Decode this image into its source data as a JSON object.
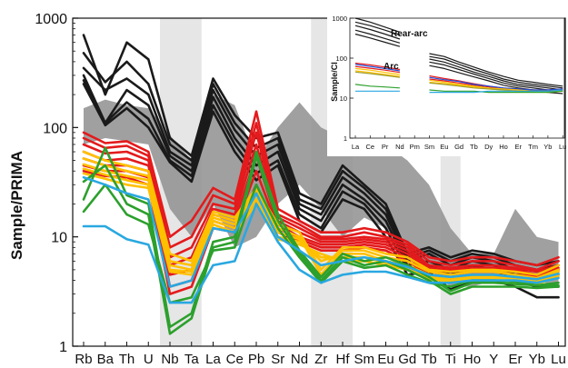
{
  "chart_data": [
    {
      "type": "line",
      "ylabel": "Sample/PRIMA",
      "yscale": "log",
      "ylim": [
        1,
        1000
      ],
      "y_ticks": [
        "1",
        "10",
        "100",
        "1000"
      ],
      "categories": [
        "Rb",
        "Ba",
        "Th",
        "U",
        "Nb",
        "Ta",
        "La",
        "Ce",
        "Pb",
        "Sr",
        "Nd",
        "Zr",
        "Hf",
        "Sm",
        "Eu",
        "Gd",
        "Tb",
        "Ti",
        "Ho",
        "Y",
        "Er",
        "Yb",
        "Lu"
      ],
      "category_positions": [
        0,
        1,
        2,
        3,
        4,
        5,
        6,
        7,
        8,
        9,
        10,
        11,
        12,
        13,
        14,
        15,
        16,
        17,
        18,
        19,
        20,
        21,
        22
      ],
      "shaded_columns": [
        "Nb",
        "Ta",
        "Zr",
        "Hf",
        "Ti"
      ],
      "grey_field": {
        "upper": [
          150,
          180,
          160,
          150,
          85,
          50,
          200,
          160,
          50,
          100,
          170,
          100,
          80,
          90,
          70,
          50,
          30,
          12,
          7,
          7,
          18,
          10,
          9
        ],
        "lower": [
          70,
          80,
          75,
          70,
          18,
          10,
          20,
          8,
          10,
          20,
          30,
          18,
          10,
          15,
          12,
          7,
          5,
          3.5,
          3.5,
          4,
          4.5,
          4,
          3.5
        ]
      },
      "series": [
        {
          "color": "#1a1a1a",
          "values": [
            700,
            200,
            600,
            420,
            80,
            55,
            280,
            130,
            80,
            90,
            25,
            20,
            45,
            30,
            20,
            7,
            8,
            6.5,
            7.5,
            7,
            6,
            5.5,
            6
          ]
        },
        {
          "color": "#1a1a1a",
          "values": [
            480,
            260,
            400,
            250,
            70,
            50,
            250,
            110,
            65,
            80,
            22,
            18,
            40,
            28,
            18,
            6.5,
            7.5,
            6,
            7,
            6.5,
            5.5,
            5,
            5.5
          ]
        },
        {
          "color": "#1a1a1a",
          "values": [
            350,
            220,
            280,
            200,
            60,
            45,
            220,
            95,
            55,
            70,
            20,
            16,
            35,
            25,
            16,
            6,
            7,
            5.5,
            6.5,
            6,
            5,
            5,
            5
          ]
        },
        {
          "color": "#1a1a1a",
          "values": [
            300,
            110,
            220,
            160,
            55,
            40,
            190,
            80,
            45,
            60,
            18,
            14,
            30,
            22,
            14,
            5.5,
            6,
            5,
            6,
            5.5,
            4.5,
            4.5,
            4.5
          ]
        },
        {
          "color": "#1a1a1a",
          "values": [
            270,
            110,
            170,
            120,
            50,
            36,
            160,
            70,
            38,
            50,
            16,
            12,
            26,
            20,
            12,
            5,
            5.5,
            4.5,
            5.5,
            5,
            4,
            3.5,
            3.5
          ]
        },
        {
          "color": "#1a1a1a",
          "values": [
            250,
            105,
            150,
            100,
            48,
            32,
            140,
            60,
            33,
            45,
            14,
            11,
            22,
            18,
            10,
            4.5,
            4.8,
            3.3,
            4,
            4,
            3.5,
            2.8,
            2.8
          ]
        },
        {
          "color": "#e41a1c",
          "values": [
            90,
            72,
            75,
            60,
            10,
            14,
            28,
            22,
            140,
            18,
            14,
            11,
            11,
            12,
            11,
            9,
            6.5,
            6,
            6.5,
            6.5,
            6,
            5.5,
            6.5
          ]
        },
        {
          "color": "#e41a1c",
          "values": [
            80,
            65,
            68,
            55,
            8,
            10,
            24,
            20,
            110,
            16,
            13,
            10,
            10,
            11,
            10,
            8.5,
            6,
            5.5,
            6,
            6,
            5.5,
            5,
            6
          ]
        },
        {
          "color": "#e41a1c",
          "values": [
            70,
            58,
            60,
            50,
            6.5,
            8,
            20,
            18,
            90,
            15,
            12,
            9.5,
            9.5,
            10,
            9.5,
            8,
            5.5,
            5.2,
            5.5,
            5.5,
            5.2,
            4.8,
            5.5
          ]
        },
        {
          "color": "#e41a1c",
          "values": [
            60,
            50,
            52,
            45,
            5.5,
            6.5,
            18,
            16,
            70,
            14,
            11,
            9,
            9,
            9.5,
            9,
            7.5,
            5.2,
            5,
            5.2,
            5.2,
            5,
            4.5,
            5.2
          ]
        },
        {
          "color": "#e41a1c",
          "values": [
            52,
            45,
            45,
            40,
            4.5,
            5,
            16,
            14,
            55,
            13,
            10,
            8.5,
            8.5,
            9,
            8.5,
            7,
            5,
            4.8,
            5,
            5,
            4.8,
            4.3,
            5
          ]
        },
        {
          "color": "#e41a1c",
          "values": [
            45,
            40,
            40,
            35,
            3.5,
            4,
            14,
            12,
            40,
            12,
            9.5,
            8,
            8,
            8.5,
            8,
            6.5,
            4.8,
            4.5,
            4.8,
            4.8,
            4.5,
            4,
            4.8
          ]
        },
        {
          "color": "#e41a1c",
          "values": [
            40,
            36,
            35,
            30,
            3,
            3.5,
            12,
            11,
            30,
            11,
            9,
            7.5,
            7.5,
            8,
            7.5,
            6,
            4.5,
            4.2,
            4.5,
            4.5,
            4.2,
            3.8,
            4.5
          ]
        },
        {
          "color": "#ffc000",
          "values": [
            60,
            50,
            45,
            40,
            7,
            6,
            17,
            15,
            28,
            13,
            11,
            5,
            8,
            8,
            7,
            6.5,
            5,
            4.8,
            5,
            5,
            4.8,
            4.5,
            5.5
          ]
        },
        {
          "color": "#ffc000",
          "values": [
            52,
            45,
            40,
            36,
            6,
            5.5,
            16,
            14,
            26,
            12,
            10,
            4.5,
            7.5,
            7.5,
            6.5,
            6,
            4.8,
            4.5,
            4.8,
            4.8,
            4.5,
            4.2,
            5
          ]
        },
        {
          "color": "#ffc000",
          "values": [
            46,
            40,
            36,
            33,
            5.5,
            5,
            15,
            13,
            24,
            11,
            9.5,
            6,
            7,
            7,
            6,
            5.5,
            4.5,
            4.2,
            4.5,
            4.5,
            4.3,
            4,
            4.8
          ]
        },
        {
          "color": "#ffc000",
          "values": [
            42,
            37,
            33,
            30,
            5,
            4.8,
            14,
            12,
            22,
            10,
            9,
            6.5,
            6.5,
            6.5,
            5.8,
            5.2,
            4.3,
            4,
            4.3,
            4.3,
            4.1,
            3.9,
            4.5
          ]
        },
        {
          "color": "#ffc000",
          "values": [
            38,
            34,
            30,
            28,
            4.8,
            4.5,
            13,
            11,
            20,
            9.5,
            8.5,
            7,
            6,
            6,
            5.5,
            5,
            4.1,
            3.9,
            4.1,
            4.1,
            3.9,
            3.7,
            4.3
          ]
        },
        {
          "color": "#2ca02c",
          "values": [
            32,
            45,
            20,
            16,
            1.3,
            1.8,
            8,
            9,
            55,
            14,
            7,
            4,
            6.5,
            5.5,
            6,
            5,
            4,
            3,
            3.5,
            3.5,
            3.5,
            3.4,
            3.5
          ]
        },
        {
          "color": "#2ca02c",
          "values": [
            22,
            65,
            24,
            20,
            1.5,
            2,
            9,
            10,
            60,
            16,
            7.5,
            4.3,
            7,
            6,
            6.5,
            5.5,
            4.3,
            3.2,
            3.8,
            3.8,
            3.7,
            3.6,
            3.8
          ]
        },
        {
          "color": "#2ca02c",
          "values": [
            17,
            30,
            16,
            13,
            2.5,
            2.8,
            7.5,
            8,
            30,
            12,
            6.5,
            3.8,
            6,
            5.2,
            5.5,
            4.5,
            3.8,
            3.5,
            4,
            4,
            3.9,
            3.6,
            3.6
          ]
        },
        {
          "color": "#29a8e0",
          "values": [
            12.5,
            12.5,
            9.5,
            8.5,
            2.5,
            2.5,
            5.5,
            6,
            20,
            9,
            5,
            3.8,
            4.5,
            4.8,
            4.8,
            4.3,
            3.8,
            3.8,
            4,
            4,
            4,
            3.8,
            4.2
          ]
        },
        {
          "color": "#29a8e0",
          "values": [
            35,
            30,
            25,
            22,
            3.5,
            4,
            12,
            11,
            25,
            10,
            7.5,
            5.5,
            6,
            6.5,
            6,
            5.3,
            4.5,
            4.3,
            4.5,
            4.5,
            4.3,
            4.1,
            4.6
          ]
        }
      ]
    },
    {
      "type": "line",
      "ylabel": "Sample/CI",
      "yscale": "log",
      "ylim": [
        1,
        1000
      ],
      "y_ticks": [
        "1",
        "10",
        "100",
        "1000"
      ],
      "categories": [
        "La",
        "Ce",
        "Pr",
        "Nd",
        "Pm",
        "Sm",
        "Eu",
        "Gd",
        "Tb",
        "Dy",
        "Ho",
        "Er",
        "Tm",
        "Yb",
        "Lu"
      ],
      "annotations": [
        "Rear-arc",
        "Arc"
      ],
      "series": [
        {
          "color": "#1a1a1a",
          "values": [
            1000,
            800,
            600,
            450,
            null,
            130,
            110,
            80,
            60,
            45,
            35,
            28,
            25,
            22,
            20
          ]
        },
        {
          "color": "#1a1a1a",
          "values": [
            800,
            650,
            500,
            380,
            null,
            110,
            95,
            70,
            52,
            40,
            30,
            25,
            22,
            20,
            18
          ]
        },
        {
          "color": "#1a1a1a",
          "values": [
            650,
            520,
            400,
            300,
            null,
            95,
            80,
            60,
            45,
            35,
            27,
            22,
            20,
            18,
            16
          ]
        },
        {
          "color": "#1a1a1a",
          "values": [
            500,
            400,
            310,
            240,
            null,
            80,
            68,
            52,
            40,
            31,
            24,
            20,
            18,
            16,
            15
          ]
        },
        {
          "color": "#1a1a1a",
          "values": [
            400,
            320,
            250,
            195,
            null,
            65,
            55,
            43,
            34,
            27,
            21,
            18,
            16,
            14,
            13
          ]
        },
        {
          "color": "#e41a1c",
          "values": [
            75,
            68,
            60,
            52,
            null,
            36,
            31,
            27,
            23,
            20,
            18,
            17,
            16,
            16,
            17
          ]
        },
        {
          "color": "#e41a1c",
          "values": [
            62,
            56,
            50,
            44,
            null,
            30,
            27,
            24,
            21,
            19,
            17,
            16,
            16,
            15,
            16
          ]
        },
        {
          "color": "#1f4fd8",
          "values": [
            70,
            62,
            55,
            48,
            null,
            33,
            29,
            26,
            22,
            20,
            18,
            17,
            16,
            16,
            17
          ]
        },
        {
          "color": "#ffc000",
          "values": [
            55,
            50,
            44,
            39,
            null,
            28,
            25,
            22,
            20,
            18,
            17,
            16,
            15,
            15,
            16
          ]
        },
        {
          "color": "#ffc000",
          "values": [
            48,
            44,
            39,
            35,
            null,
            25,
            23,
            21,
            19,
            17,
            16,
            15,
            15,
            14,
            15
          ]
        },
        {
          "color": "#9c9c2c",
          "values": [
            45,
            41,
            37,
            33,
            null,
            24,
            22,
            20,
            18,
            17,
            16,
            15,
            15,
            15,
            15
          ]
        },
        {
          "color": "#2ca02c",
          "values": [
            22,
            20,
            19,
            18,
            null,
            16,
            15,
            15,
            15,
            14,
            14,
            14,
            14,
            14,
            15
          ]
        },
        {
          "color": "#29a8e0",
          "values": [
            15,
            15,
            15,
            15,
            null,
            14,
            14,
            14,
            14,
            15,
            15,
            15,
            15,
            15,
            16
          ]
        }
      ]
    }
  ]
}
